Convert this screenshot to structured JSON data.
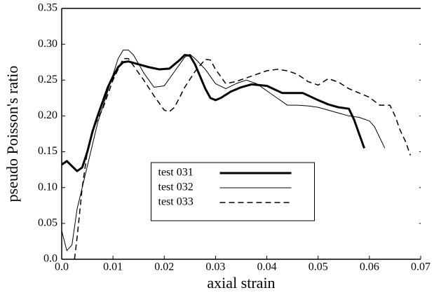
{
  "chart_data": {
    "type": "line",
    "xlabel": "axial strain",
    "ylabel": "pseudo Poisson's ratio",
    "xlim": [
      0,
      0.07
    ],
    "ylim": [
      0,
      0.35
    ],
    "xticks": [
      {
        "value": 0,
        "label": "0.0"
      },
      0.01,
      0.02,
      0.03,
      0.04,
      0.05,
      0.06,
      0.07
    ],
    "yticks": [
      {
        "value": 0,
        "label": "0.0"
      },
      0.05,
      {
        "value": 0.1,
        "label": "0.10"
      },
      0.15,
      {
        "value": 0.2,
        "label": "0.20"
      },
      0.25,
      {
        "value": 0.3,
        "label": "0.30"
      },
      0.35
    ],
    "legend_position": "lower-center",
    "series": [
      {
        "name": "test 031",
        "color": "#000000",
        "line_width": 3,
        "dash": false,
        "x": [
          0,
          0.001,
          0.002,
          0.003,
          0.004,
          0.005,
          0.006,
          0.007,
          0.008,
          0.009,
          0.01,
          0.011,
          0.012,
          0.013,
          0.015,
          0.017,
          0.019,
          0.021,
          0.023,
          0.024,
          0.025,
          0.026,
          0.027,
          0.028,
          0.029,
          0.03,
          0.031,
          0.033,
          0.035,
          0.037,
          0.04,
          0.043,
          0.045,
          0.047,
          0.05,
          0.052,
          0.054,
          0.056,
          0.057,
          0.058,
          0.059
        ],
        "values": [
          0.132,
          0.137,
          0.13,
          0.123,
          0.128,
          0.15,
          0.178,
          0.2,
          0.22,
          0.24,
          0.255,
          0.268,
          0.275,
          0.276,
          0.272,
          0.268,
          0.265,
          0.266,
          0.278,
          0.285,
          0.284,
          0.272,
          0.255,
          0.238,
          0.225,
          0.222,
          0.225,
          0.234,
          0.24,
          0.244,
          0.242,
          0.232,
          0.232,
          0.232,
          0.222,
          0.216,
          0.212,
          0.21,
          0.195,
          0.175,
          0.155
        ]
      },
      {
        "name": "test 032",
        "color": "#000000",
        "line_width": 1,
        "dash": false,
        "x": [
          0,
          0.001,
          0.002,
          0.003,
          0.005,
          0.007,
          0.009,
          0.011,
          0.012,
          0.013,
          0.014,
          0.016,
          0.018,
          0.02,
          0.022,
          0.024,
          0.025,
          0.026,
          0.028,
          0.03,
          0.032,
          0.034,
          0.036,
          0.038,
          0.04,
          0.042,
          0.044,
          0.046,
          0.048,
          0.05,
          0.052,
          0.054,
          0.056,
          0.058,
          0.06,
          0.061,
          0.062,
          0.063
        ],
        "values": [
          0.04,
          0.012,
          0.02,
          0.07,
          0.13,
          0.19,
          0.235,
          0.28,
          0.292,
          0.292,
          0.285,
          0.26,
          0.24,
          0.242,
          0.262,
          0.282,
          0.286,
          0.28,
          0.265,
          0.245,
          0.238,
          0.245,
          0.25,
          0.245,
          0.235,
          0.225,
          0.215,
          0.215,
          0.214,
          0.212,
          0.208,
          0.204,
          0.2,
          0.198,
          0.193,
          0.185,
          0.17,
          0.155
        ]
      },
      {
        "name": "test 033",
        "color": "#000000",
        "line_width": 1.5,
        "dash": true,
        "x": [
          0.0025,
          0.003,
          0.004,
          0.005,
          0.006,
          0.008,
          0.01,
          0.012,
          0.013,
          0.014,
          0.016,
          0.018,
          0.02,
          0.021,
          0.022,
          0.024,
          0.026,
          0.028,
          0.029,
          0.03,
          0.032,
          0.034,
          0.036,
          0.038,
          0.04,
          0.042,
          0.044,
          0.046,
          0.048,
          0.05,
          0.052,
          0.054,
          0.056,
          0.058,
          0.06,
          0.062,
          0.064,
          0.065,
          0.066,
          0.067,
          0.068
        ],
        "values": [
          0,
          0.03,
          0.1,
          0.15,
          0.18,
          0.21,
          0.25,
          0.28,
          0.28,
          0.27,
          0.25,
          0.228,
          0.208,
          0.206,
          0.212,
          0.24,
          0.262,
          0.279,
          0.278,
          0.265,
          0.245,
          0.248,
          0.253,
          0.258,
          0.263,
          0.265,
          0.263,
          0.258,
          0.248,
          0.243,
          0.252,
          0.247,
          0.238,
          0.232,
          0.226,
          0.215,
          0.215,
          0.2,
          0.18,
          0.165,
          0.145
        ]
      }
    ]
  }
}
